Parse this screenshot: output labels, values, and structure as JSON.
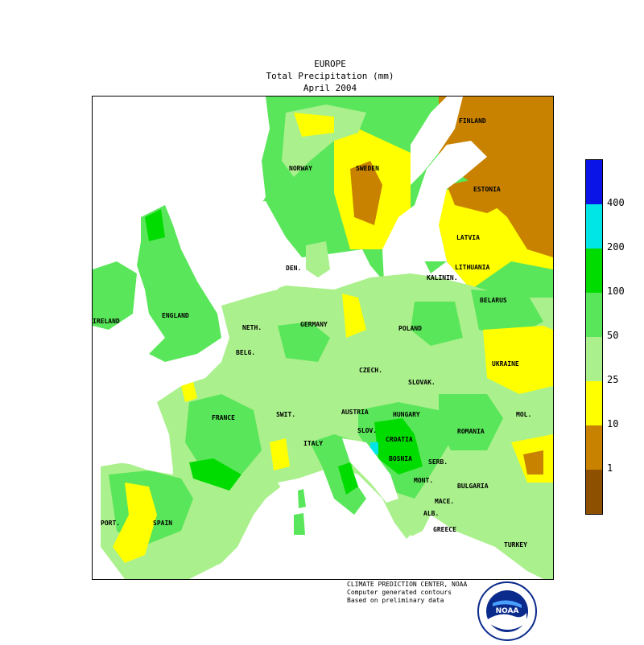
{
  "title": {
    "region": "EUROPE",
    "variable": "Total Precipitation (mm)",
    "period": "April 2004"
  },
  "legend": {
    "levels": [
      "400",
      "200",
      "100",
      "50",
      "25",
      "10",
      "1"
    ],
    "colors": [
      "#0a14e6",
      "#00e6e6",
      "#00dc00",
      "#5ae65a",
      "#aaf08c",
      "#ffff00",
      "#c88200",
      "#8c5000"
    ]
  },
  "countries": {
    "finland": "FINLAND",
    "norway": "NORWAY",
    "sweden": "SWEDEN",
    "estonia": "ESTONIA",
    "latvia": "LATVIA",
    "lithuania": "LITHUANIA",
    "kalinin": "KALININ.",
    "belarus": "BELARUS",
    "den": "DEN.",
    "ireland": "IRELAND",
    "england": "ENGLAND",
    "neth": "NETH.",
    "germany": "GERMANY",
    "poland": "POLAND",
    "belg": "BELG.",
    "czech": "CZECH.",
    "slovak": "SLOVAK.",
    "ukraine": "UKRAINE",
    "austria": "AUSTRIA",
    "hungary": "HUNGARY",
    "mol": "MOL.",
    "france": "FRANCE",
    "swit": "SWIT.",
    "slov": "SLOV.",
    "croatia": "CROATIA",
    "romania": "ROMANIA",
    "italy": "ITALY",
    "bosnia": "BOSNIA",
    "serb": "SERB.",
    "mont": "MONT.",
    "bulgaria": "BULGARIA",
    "mace": "MACE.",
    "port": "PORT.",
    "spain": "SPAIN",
    "alb": "ALB.",
    "greece": "GREECE",
    "turkey": "TURKEY"
  },
  "credit": {
    "line1": "CLIMATE PREDICTION CENTER, NOAA",
    "line2": "Computer generated contours",
    "line3": "Based on preliminary data"
  },
  "logo": {
    "text": "NOAA"
  }
}
